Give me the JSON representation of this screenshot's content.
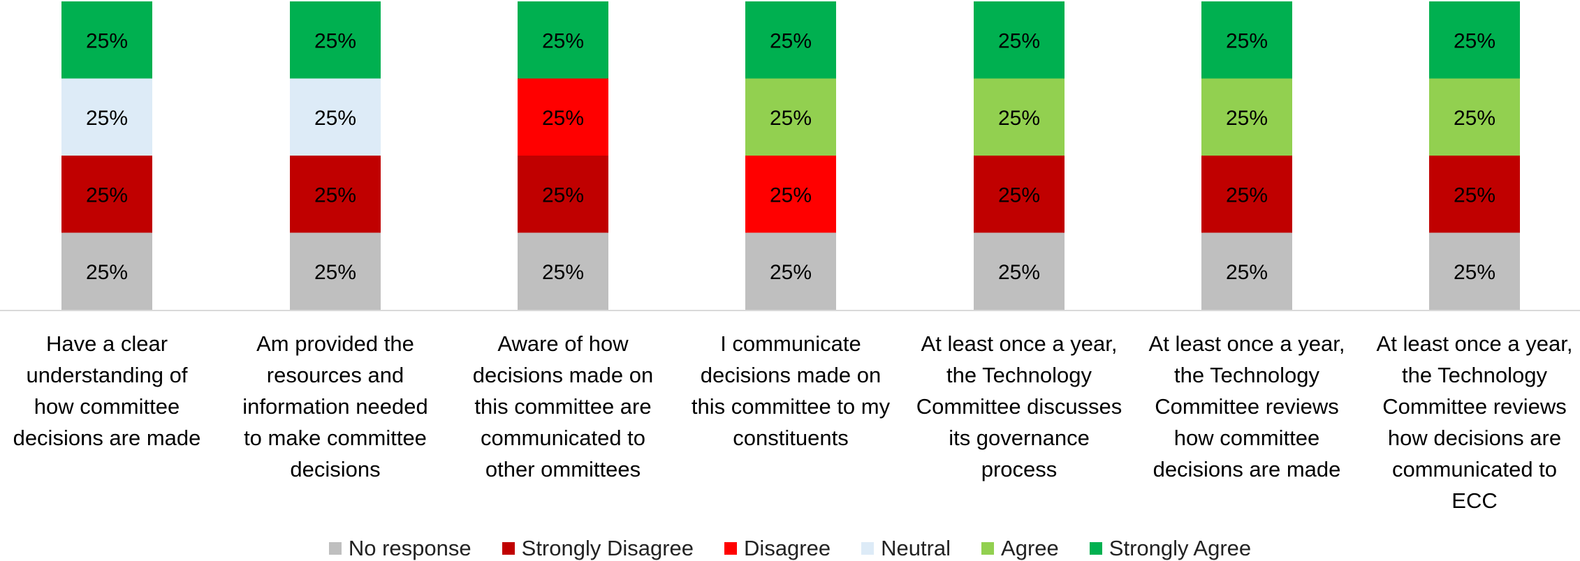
{
  "chart_data": {
    "type": "bar",
    "stacked": true,
    "categories": [
      [
        "Have a clear",
        "understanding of",
        "how committee",
        "decisions are made"
      ],
      [
        "Am provided the",
        "resources and",
        "information needed",
        "to make committee",
        "decisions"
      ],
      [
        "Aware of how",
        "decisions made on",
        "this committee are",
        "communicated to",
        "other ommittees"
      ],
      [
        "I communicate",
        "decisions made on",
        "this committee to my",
        "constituents"
      ],
      [
        "At least once a year,",
        "the Technology",
        "Committee discusses",
        "its governance",
        "process"
      ],
      [
        "At least once a year,",
        "the Technology",
        "Committee reviews",
        "how committee",
        "decisions are made"
      ],
      [
        "At least once a year,",
        "the Technology",
        "Committee reviews",
        "how decisions are",
        "communicated to",
        "ECC"
      ]
    ],
    "segments": [
      [
        {
          "series": "No response",
          "value": 25,
          "label": "25%"
        },
        {
          "series": "Strongly Disagree",
          "value": 25,
          "label": "25%"
        },
        {
          "series": "Neutral",
          "value": 25,
          "label": "25%"
        },
        {
          "series": "Strongly Agree",
          "value": 25,
          "label": "25%"
        }
      ],
      [
        {
          "series": "No response",
          "value": 25,
          "label": "25%"
        },
        {
          "series": "Strongly Disagree",
          "value": 25,
          "label": "25%"
        },
        {
          "series": "Neutral",
          "value": 25,
          "label": "25%"
        },
        {
          "series": "Strongly Agree",
          "value": 25,
          "label": "25%"
        }
      ],
      [
        {
          "series": "No response",
          "value": 25,
          "label": "25%"
        },
        {
          "series": "Strongly Disagree",
          "value": 25,
          "label": "25%"
        },
        {
          "series": "Disagree",
          "value": 25,
          "label": "25%"
        },
        {
          "series": "Strongly Agree",
          "value": 25,
          "label": "25%"
        }
      ],
      [
        {
          "series": "No response",
          "value": 25,
          "label": "25%"
        },
        {
          "series": "Disagree",
          "value": 25,
          "label": "25%"
        },
        {
          "series": "Agree",
          "value": 25,
          "label": "25%"
        },
        {
          "series": "Strongly Agree",
          "value": 25,
          "label": "25%"
        }
      ],
      [
        {
          "series": "No response",
          "value": 25,
          "label": "25%"
        },
        {
          "series": "Strongly Disagree",
          "value": 25,
          "label": "25%"
        },
        {
          "series": "Agree",
          "value": 25,
          "label": "25%"
        },
        {
          "series": "Strongly Agree",
          "value": 25,
          "label": "25%"
        }
      ],
      [
        {
          "series": "No response",
          "value": 25,
          "label": "25%"
        },
        {
          "series": "Strongly Disagree",
          "value": 25,
          "label": "25%"
        },
        {
          "series": "Agree",
          "value": 25,
          "label": "25%"
        },
        {
          "series": "Strongly Agree",
          "value": 25,
          "label": "25%"
        }
      ],
      [
        {
          "series": "No response",
          "value": 25,
          "label": "25%"
        },
        {
          "series": "Strongly Disagree",
          "value": 25,
          "label": "25%"
        },
        {
          "series": "Agree",
          "value": 25,
          "label": "25%"
        },
        {
          "series": "Strongly Agree",
          "value": 25,
          "label": "25%"
        }
      ]
    ],
    "series": [
      {
        "name": "No response",
        "color": "#bfbfbf"
      },
      {
        "name": "Strongly Disagree",
        "color": "#c00000"
      },
      {
        "name": "Disagree",
        "color": "#ff0000"
      },
      {
        "name": "Neutral",
        "color": "#ddebf7"
      },
      {
        "name": "Agree",
        "color": "#92d050"
      },
      {
        "name": "Strongly Agree",
        "color": "#00b050"
      }
    ],
    "ylim": [
      0,
      100
    ],
    "legend_position": "bottom",
    "grid": false
  }
}
